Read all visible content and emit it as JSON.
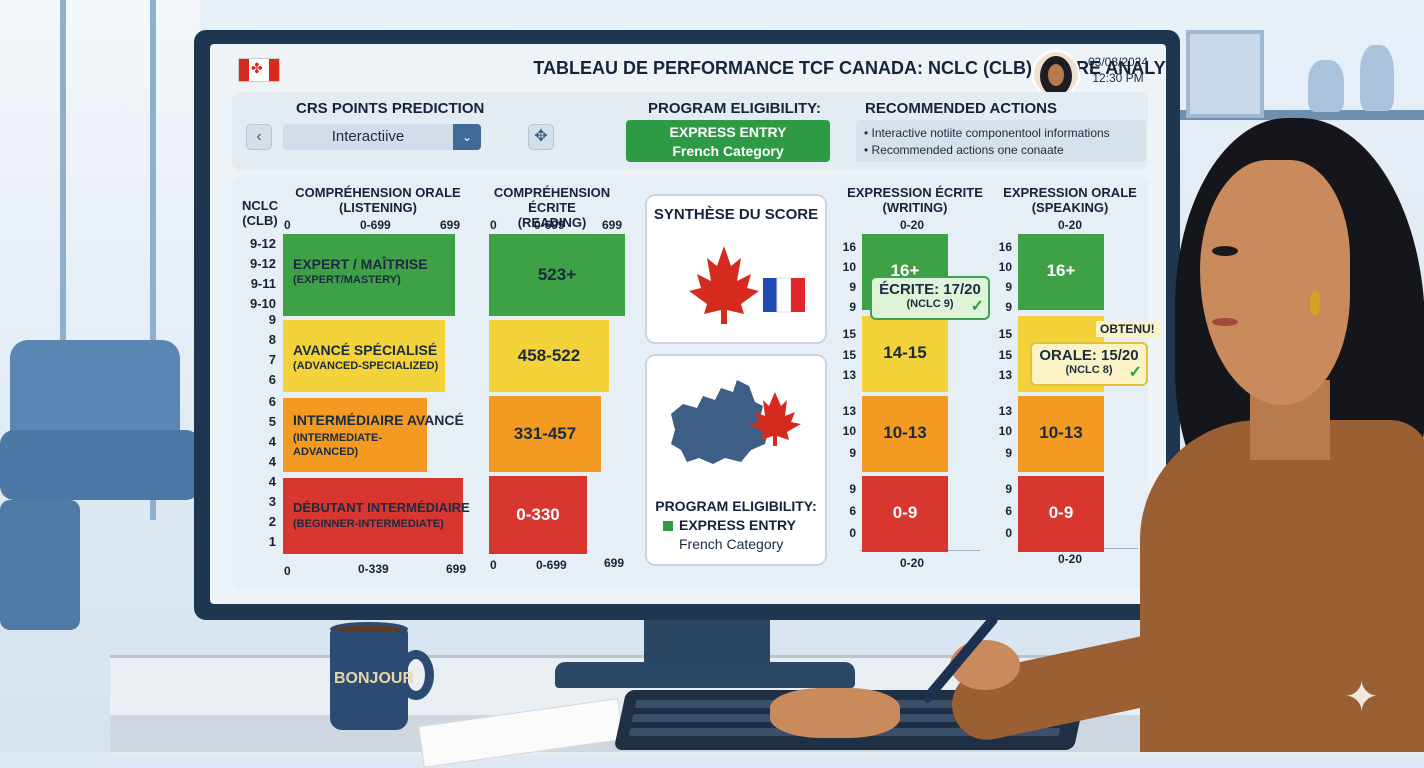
{
  "header": {
    "title": "TABLEAU DE PERFORMANCE TCF CANADA: NCLC (CLB) SCORE ANALYTICS",
    "date": "03/08/2024",
    "time": "12:30 PM"
  },
  "crs": {
    "title": "CRS POINTS PREDICTION",
    "prev_label": "‹",
    "select_value": "Interactiive",
    "dropdown_label": "⌄",
    "extra_label": "✥"
  },
  "eligibility_top": {
    "title": "PROGRAM ELIGIBILITY:",
    "line1": "EXPRESS ENTRY",
    "line2": "French Category"
  },
  "recommended": {
    "title": "RECOMMENDED ACTIONS",
    "items": [
      "• Interactive notiite componentool informations",
      "• Recommended actions one conaate"
    ]
  },
  "nclc_axis": {
    "label1": "NCLC",
    "label2": "(CLB)",
    "groups": [
      [
        "9-12",
        "9-12",
        "9-11",
        "9-10"
      ],
      [
        "9",
        "8",
        "7",
        "6"
      ],
      [
        "6",
        "5",
        "4",
        "4"
      ],
      [
        "4",
        "3",
        "2",
        "1"
      ]
    ]
  },
  "listening": {
    "header1": "COMPRÉHENSION ORALE",
    "header2": "(LISTENING)",
    "top_ticks": [
      "0",
      "0-699",
      "699"
    ],
    "bottom_ticks": [
      "0",
      "0-339",
      "699"
    ],
    "bars": [
      {
        "label": "EXPERT / MAÎTRISE",
        "sub": "(EXPERT/MASTERY)",
        "color": "#3ea145"
      },
      {
        "label": "AVANCÉ SPÉCIALISÉ",
        "sub": "(ADVANCED-SPECIALIZED)",
        "color": "#f4d23a"
      },
      {
        "label": "INTERMÉDIAIRE AVANCÉ",
        "sub": "(INTERMEDIATE-",
        "sub2": "ADVANCED)",
        "color": "#f39a22"
      },
      {
        "label": "DÉBUTANT INTERMÉDIAIRE",
        "sub": "(BEGINNER-INTERMEDIATE)",
        "color": "#d7372f"
      }
    ]
  },
  "reading": {
    "header1": "COMPRÉHENSION ÉCRITE",
    "header2": "(READING)",
    "top_ticks": [
      "0",
      "0-699",
      "699"
    ],
    "bottom_ticks": [
      "0",
      "0-699",
      "699"
    ],
    "bars": [
      {
        "label": "523+",
        "color": "#3ea145"
      },
      {
        "label": "458-522",
        "color": "#f4d23a"
      },
      {
        "label": "331-457",
        "color": "#f39a22"
      },
      {
        "label": "0-330",
        "color": "#d7372f"
      }
    ]
  },
  "synthese": {
    "title": "SYNTHÈSE DU SCORE",
    "elig_title": "PROGRAM ELIGIBILITY:",
    "elig_line1": "EXPRESS ENTRY",
    "elig_line2": "French Category"
  },
  "writing": {
    "header1": "EXPRESSION ÉCRITE",
    "header2": "(WRITING)",
    "top_tick": "0-20",
    "bottom_tick": "0-20",
    "ticks": [
      [
        "16",
        "10",
        "9",
        "9"
      ],
      [
        "15",
        "15",
        "13"
      ],
      [
        "13",
        "10",
        "9"
      ],
      [
        "9",
        "6",
        "0"
      ]
    ],
    "bars": [
      {
        "label": "16+",
        "color": "#3ea145"
      },
      {
        "label": "14-15",
        "color": "#f4d23a"
      },
      {
        "label": "10-13",
        "color": "#f39a22"
      },
      {
        "label": "0-9",
        "color": "#d7372f"
      }
    ],
    "badge_line1": "ÉCRITE: 17/20",
    "badge_line2": "(NCLC 9)",
    "badge_check": "✓"
  },
  "speaking": {
    "header1": "EXPRESSION ORALE",
    "header2": "(SPEAKING)",
    "top_tick": "0-20",
    "bottom_tick": "0-20",
    "ticks": [
      [
        "16",
        "10",
        "9",
        "9"
      ],
      [
        "15",
        "15",
        "13"
      ],
      [
        "13",
        "10",
        "9"
      ],
      [
        "9",
        "6",
        "0"
      ]
    ],
    "bars": [
      {
        "label": "16+",
        "color": "#3ea145"
      },
      {
        "label": "",
        "color": "#f4d23a"
      },
      {
        "label": "10-13",
        "color": "#f39a22"
      },
      {
        "label": "0-9",
        "color": "#d7372f"
      }
    ],
    "obtenu": "OBTENU!",
    "badge_line1": "ORALE: 15/20",
    "badge_line2": "(NCLC 8)",
    "badge_check": "✓"
  },
  "mug": {
    "label": "BONJOUR"
  },
  "colors": {
    "green": "#3ea145",
    "yellow": "#f4d23a",
    "orange": "#f39a22",
    "red": "#d7372f",
    "canada_red": "#d52b1e",
    "france_blue": "#1f4bb5"
  }
}
